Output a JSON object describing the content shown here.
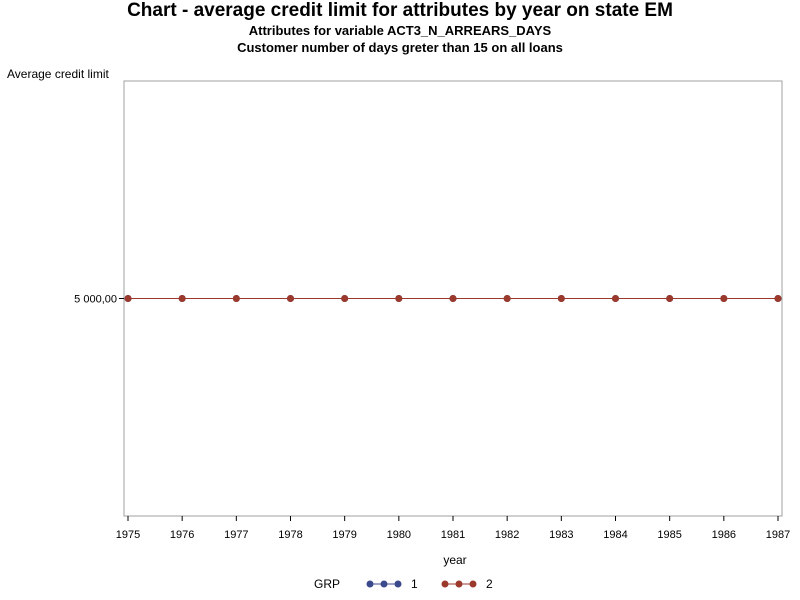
{
  "titles": {
    "main": "Chart - average credit limit for attributes by year on state EM",
    "sub1": "Attributes for variable ACT3_N_ARREARS_DAYS",
    "sub2": "Customer number of days greter than 15 on all loans"
  },
  "legend": {
    "title": "GRP",
    "items": [
      {
        "label": "1",
        "color": "#3c4a8c"
      },
      {
        "label": "2",
        "color": "#9b3a2c"
      }
    ]
  },
  "chart_data": {
    "type": "line",
    "title": "Chart - average credit limit for attributes by year on state EM",
    "subtitle": [
      "Attributes for variable ACT3_N_ARREARS_DAYS",
      "Customer number of days greter than 15 on all loans"
    ],
    "xlabel": "year",
    "ylabel": "Average credit limit",
    "x": [
      1975,
      1976,
      1977,
      1978,
      1979,
      1980,
      1981,
      1982,
      1983,
      1984,
      1985,
      1986,
      1987
    ],
    "xlim": [
      1975,
      1987
    ],
    "ylim": [
      0,
      10000
    ],
    "y_ticks": [
      5000
    ],
    "y_tick_labels": [
      "5 000,00"
    ],
    "grid": false,
    "legend_position": "bottom",
    "legend_title": "GRP",
    "series": [
      {
        "name": "1",
        "color": "#3c4a8c",
        "values": [
          5000,
          5000,
          5000,
          5000,
          5000,
          5000,
          5000,
          5000,
          5000,
          5000,
          5000,
          5000,
          5000
        ]
      },
      {
        "name": "2",
        "color": "#9b3a2c",
        "values": [
          5000,
          5000,
          5000,
          5000,
          5000,
          5000,
          5000,
          5000,
          5000,
          5000,
          5000,
          5000,
          5000
        ]
      }
    ]
  }
}
